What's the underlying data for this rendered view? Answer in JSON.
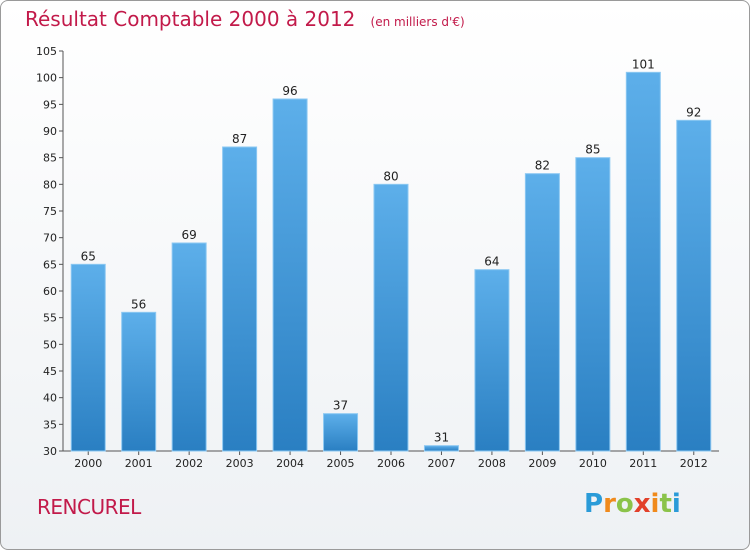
{
  "header": {
    "title": "Résultat Comptable 2000 à 2012",
    "subtitle": "(en milliers d'€)"
  },
  "commune": "RENCUREL",
  "logo": {
    "text": "Proxiti"
  },
  "chart_data": {
    "type": "bar",
    "title": "Résultat Comptable 2000 à 2012",
    "subtitle": "(en milliers d'€)",
    "categories": [
      "2000",
      "2001",
      "2002",
      "2003",
      "2004",
      "2005",
      "2006",
      "2007",
      "2008",
      "2009",
      "2010",
      "2011",
      "2012"
    ],
    "values": [
      65,
      56,
      69,
      87,
      96,
      37,
      80,
      31,
      64,
      82,
      85,
      101,
      92
    ],
    "ylim": [
      30,
      105
    ],
    "yticks": [
      30,
      35,
      40,
      45,
      50,
      55,
      60,
      65,
      70,
      75,
      80,
      85,
      90,
      95,
      100,
      105
    ],
    "grid": false,
    "data_labels": true,
    "colors": {
      "bar_top": "#5dafea",
      "bar_bottom": "#2a7fc2",
      "bar_edge": "#8cc8f2"
    }
  }
}
